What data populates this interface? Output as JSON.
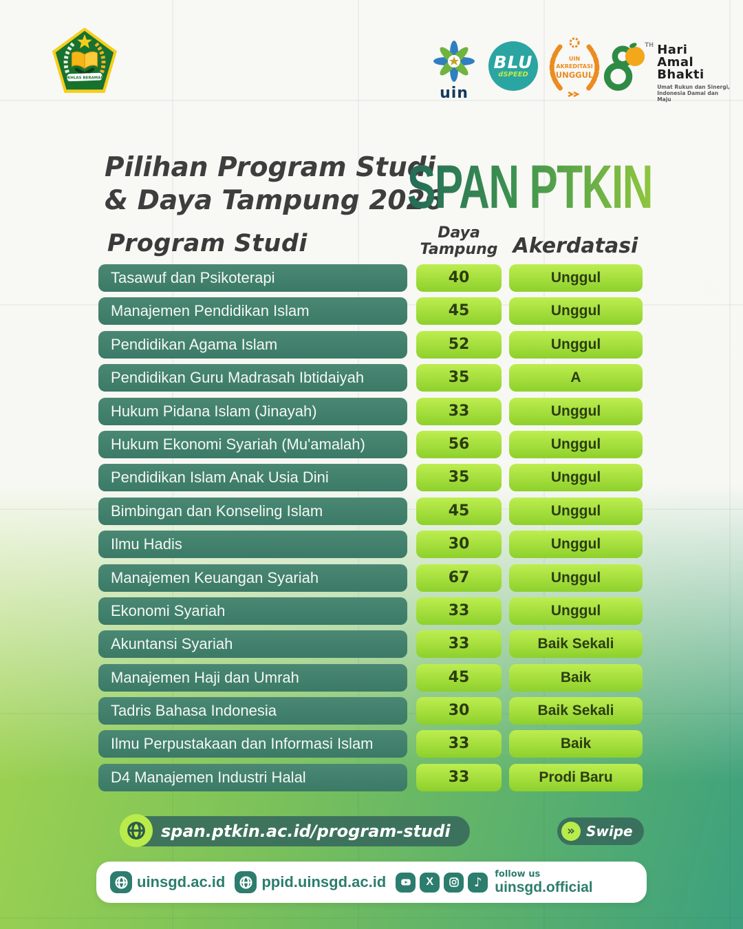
{
  "page": {
    "title_line1": "Pilihan Program Studi",
    "title_line2": "& Daya Tampung 2026",
    "brand": "SPAN PTKIN"
  },
  "header_logos": {
    "kemenag_banner": "IKHLAS BERAMAL",
    "uin_wordmark": "uin",
    "blu_label": "BLU",
    "blu_sub": "dSPEED",
    "akreditasi_line1": "UIN",
    "akreditasi_line2": "AKREDITASI",
    "akreditasi_line3": "UNGGUL",
    "hab_anniversary": "80",
    "hab_th": "TH",
    "hab_title_line1": "Hari",
    "hab_title_line2": "Amal",
    "hab_title_line3": "Bhakti",
    "hab_tagline_line1": "Umat Rukun dan Sinergi,",
    "hab_tagline_line2": "Indonesia Damai dan Maju"
  },
  "table": {
    "col_program": "Program Studi",
    "col_daya_line1": "Daya",
    "col_daya_line2": "Tampung",
    "col_akreditasi": "Akerdatasi",
    "rows": [
      {
        "program": "Tasawuf dan Psikoterapi",
        "daya": 40,
        "akreditasi": "Unggul"
      },
      {
        "program": "Manajemen Pendidikan Islam",
        "daya": 45,
        "akreditasi": "Unggul"
      },
      {
        "program": "Pendidikan Agama Islam",
        "daya": 52,
        "akreditasi": "Unggul"
      },
      {
        "program": "Pendidikan Guru Madrasah Ibtidaiyah",
        "daya": 35,
        "akreditasi": "A"
      },
      {
        "program": "Hukum Pidana Islam (Jinayah)",
        "daya": 33,
        "akreditasi": "Unggul"
      },
      {
        "program": "Hukum Ekonomi Syariah (Mu'amalah)",
        "daya": 56,
        "akreditasi": "Unggul"
      },
      {
        "program": "Pendidikan Islam Anak Usia Dini",
        "daya": 35,
        "akreditasi": "Unggul"
      },
      {
        "program": "Bimbingan dan Konseling Islam",
        "daya": 45,
        "akreditasi": "Unggul"
      },
      {
        "program": "Ilmu Hadis",
        "daya": 30,
        "akreditasi": "Unggul"
      },
      {
        "program": "Manajemen Keuangan Syariah",
        "daya": 67,
        "akreditasi": "Unggul"
      },
      {
        "program": "Ekonomi Syariah",
        "daya": 33,
        "akreditasi": "Unggul"
      },
      {
        "program": "Akuntansi Syariah",
        "daya": 33,
        "akreditasi": "Baik Sekali"
      },
      {
        "program": "Manajemen Haji dan Umrah",
        "daya": 45,
        "akreditasi": "Baik"
      },
      {
        "program": "Tadris Bahasa Indonesia",
        "daya": 30,
        "akreditasi": "Baik Sekali"
      },
      {
        "program": "Ilmu Perpustakaan dan Informasi Islam",
        "daya": 33,
        "akreditasi": "Baik"
      },
      {
        "program": "D4 Manajemen Industri Halal",
        "daya": 33,
        "akreditasi": "Prodi Baru"
      }
    ]
  },
  "footer": {
    "program_url": "span.ptkin.ac.id/program-studi",
    "swipe_chevron": "»",
    "swipe_label": "Swipe",
    "site1": "uinsgd.ac.id",
    "site2": "ppid.uinsgd.ac.id",
    "follow_us": "follow us",
    "social_handle": "uinsgd.official"
  },
  "colors": {
    "teal_pill": "#3b7a66",
    "lime_light": "#bdee50",
    "lime_dark": "#8ed02c",
    "brand_gradient_start": "#236b58",
    "brand_gradient_end": "#8ec63d",
    "teal_text": "#2c7d6e",
    "bg_green_left": "#b2dc4b",
    "bg_green_right": "#3ca07e"
  }
}
